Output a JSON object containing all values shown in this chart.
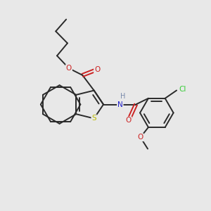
{
  "background_color": "#e8e8e8",
  "bond_color": "#2a2a2a",
  "S_color": "#bbbb00",
  "N_color": "#2222cc",
  "O_color": "#cc2222",
  "Cl_color": "#33cc33",
  "H_color": "#7788aa",
  "figsize": [
    3.0,
    3.0
  ],
  "dpi": 100,
  "xlim": [
    0,
    10
  ],
  "ylim": [
    0,
    10
  ]
}
